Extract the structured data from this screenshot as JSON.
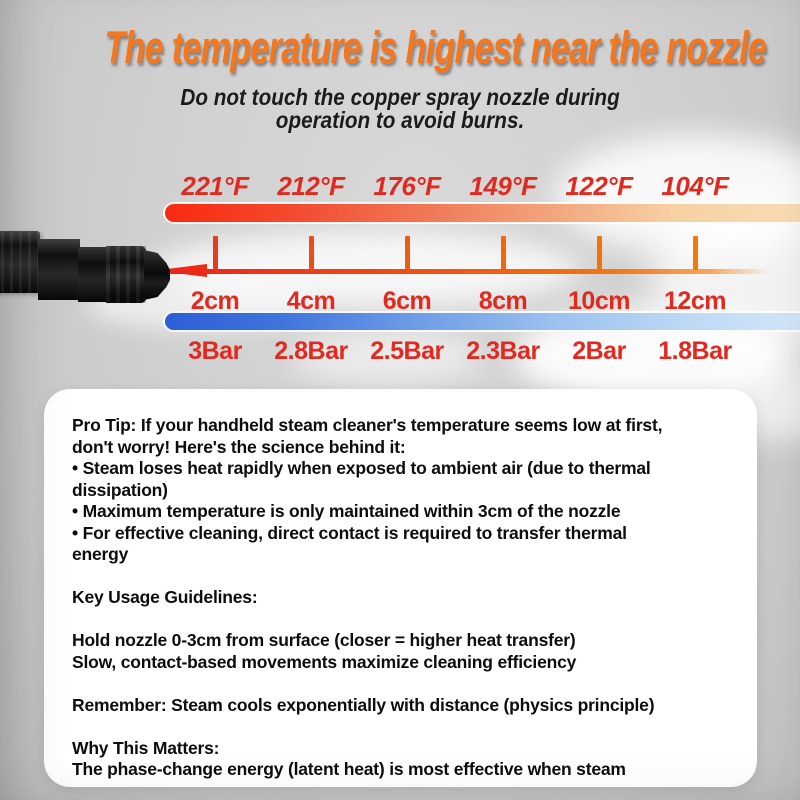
{
  "title": "The temperature is highest near the nozzle",
  "subtitle_lines": [
    "Do not touch the copper spray nozzle during",
    "operation to avoid burns."
  ],
  "colors": {
    "title_orange": "#f5771d",
    "label_red": "#e02a1f",
    "heat_bar_start": "#f82a10",
    "heat_bar_end": "#f9dcb4",
    "pressure_bar_start": "#2c5fd7",
    "pressure_bar_end": "#d2e6f8",
    "ruler_start": "#e8251a",
    "ruler_end": "#f3740e",
    "tick_colors": [
      "#e73c1c",
      "#ea4d15",
      "#ee5c10",
      "#f0680b",
      "#f37208",
      "#f57a05"
    ]
  },
  "gauge": {
    "temperatures": [
      "221°F",
      "212°F",
      "176°F",
      "149°F",
      "122°F",
      "104°F"
    ],
    "distances": [
      "2cm",
      "4cm",
      "6cm",
      "8cm",
      "10cm",
      "12cm"
    ],
    "pressures": [
      "3Bar",
      "2.8Bar",
      "2.5Bar",
      "2.3Bar",
      "2Bar",
      "1.8Bar"
    ]
  },
  "info_box": {
    "lines": [
      "Pro Tip: If your handheld steam cleaner's temperature seems low at first,",
      "don't worry! Here's the science behind it:",
      "• Steam loses heat rapidly when exposed to ambient air (due to thermal",
      "dissipation)",
      "• Maximum temperature is only maintained within 3cm of the nozzle",
      "• For effective cleaning, direct contact is required to transfer thermal",
      "energy",
      "",
      "Key Usage Guidelines:",
      "",
      "Hold nozzle 0-3cm from surface (closer = higher heat transfer)",
      "Slow, contact-based movements maximize cleaning efficiency",
      "",
      "Remember: Steam cools exponentially with distance (physics principle)",
      "",
      "Why This Matters:",
      "The phase-change energy (latent heat) is most effective when steam"
    ]
  }
}
